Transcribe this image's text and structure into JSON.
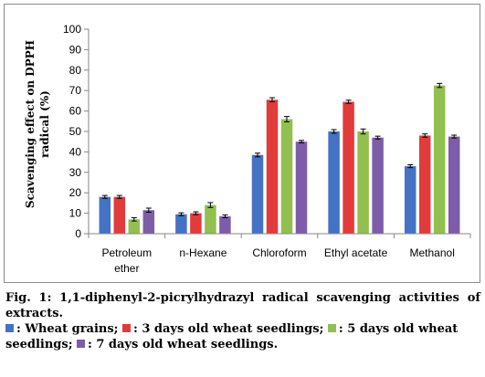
{
  "chart_data": {
    "type": "bar",
    "categories": [
      [
        "Petroleum",
        "ether"
      ],
      [
        "n-Hexane"
      ],
      [
        "Chloroform"
      ],
      [
        "Ethyl acetate"
      ],
      [
        "Methanol"
      ]
    ],
    "series": [
      {
        "name": "Wheat grains",
        "color": "#4472c4",
        "values": [
          18,
          9.5,
          38.5,
          50,
          33
        ],
        "errors": [
          0.7,
          0.7,
          0.9,
          0.9,
          0.7
        ]
      },
      {
        "name": "3 days old wheat seedlings",
        "color": "#e23b3b",
        "values": [
          18,
          10,
          65.5,
          64.5,
          48
        ],
        "errors": [
          0.7,
          0.7,
          1.0,
          0.8,
          0.8
        ]
      },
      {
        "name": "5 days old wheat seedlings",
        "color": "#92c050",
        "values": [
          7,
          14,
          56,
          50,
          72.5
        ],
        "errors": [
          0.8,
          1.2,
          1.3,
          1.2,
          1.0
        ]
      },
      {
        "name": "7 days old wheat seedlings",
        "color": "#7e5ca8",
        "values": [
          11.5,
          8.5,
          45,
          47,
          47.5
        ],
        "errors": [
          1.0,
          0.7,
          0.6,
          0.7,
          0.7
        ]
      }
    ],
    "ylabel": [
      "Scavenging effect on DPPH",
      "radical (%)"
    ],
    "ylim": [
      0,
      100
    ],
    "yticks": [
      0,
      10,
      20,
      30,
      40,
      50,
      60,
      70,
      80,
      90,
      100
    ],
    "grid": false,
    "legend": "below, in caption"
  },
  "caption": {
    "title": "Fig. 1: 1,1-diphenyl-2-picrylhydrazyl radical scavenging activities of extracts.",
    "legend_sep": "; ",
    "legend_end": "."
  }
}
